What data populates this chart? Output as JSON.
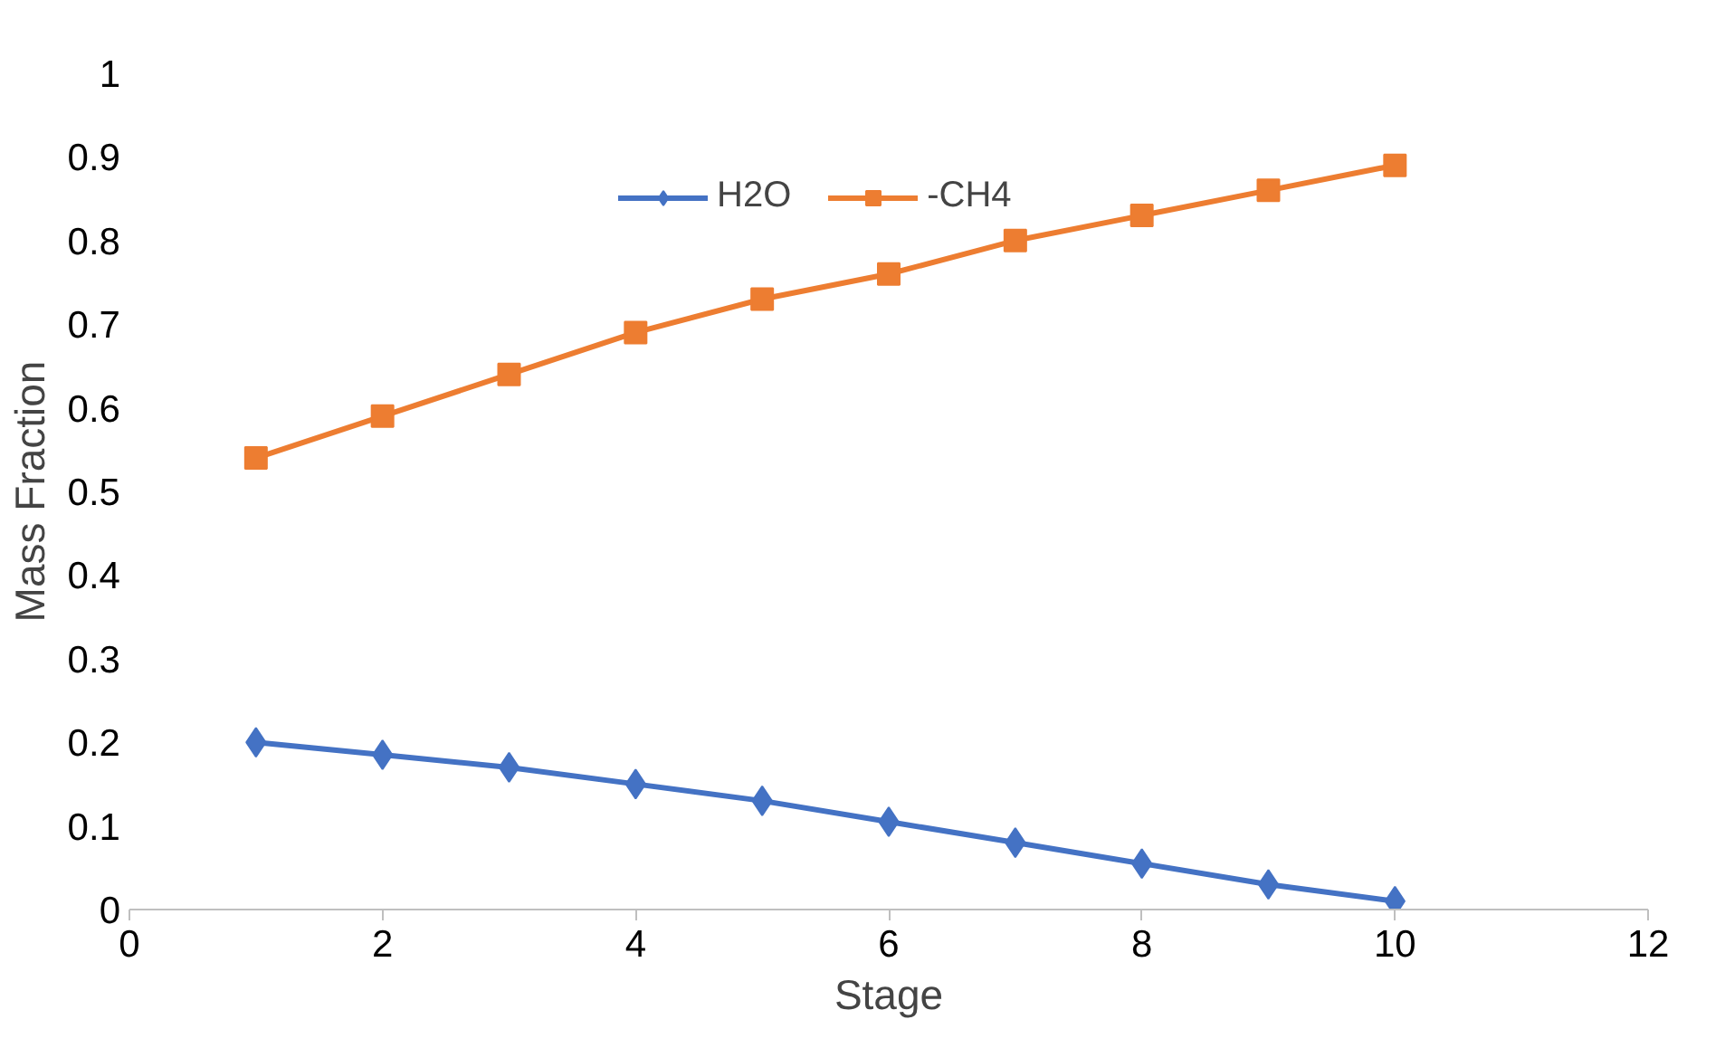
{
  "chart_data": {
    "type": "line",
    "xlabel": "Stage",
    "ylabel": "Mass Fraction",
    "x": [
      1,
      2,
      3,
      4,
      5,
      6,
      7,
      8,
      9,
      10
    ],
    "series": [
      {
        "name": "H2O",
        "color": "#4472c4",
        "marker": "diamond",
        "values": [
          0.2,
          0.185,
          0.17,
          0.15,
          0.13,
          0.105,
          0.08,
          0.055,
          0.03,
          0.01
        ]
      },
      {
        "name": "-CH4",
        "color": "#ed7d31",
        "marker": "square",
        "values": [
          0.54,
          0.59,
          0.64,
          0.69,
          0.73,
          0.76,
          0.8,
          0.83,
          0.86,
          0.89
        ]
      }
    ],
    "xlim": [
      0,
      12
    ],
    "xticks": [
      0,
      2,
      4,
      6,
      8,
      10,
      12
    ],
    "ylim": [
      0,
      1
    ],
    "yticks": [
      0,
      0.1,
      0.2,
      0.3,
      0.4,
      0.5,
      0.6,
      0.7,
      0.8,
      0.9,
      1
    ],
    "grid": false,
    "legend": "top",
    "line_style": "solid"
  }
}
